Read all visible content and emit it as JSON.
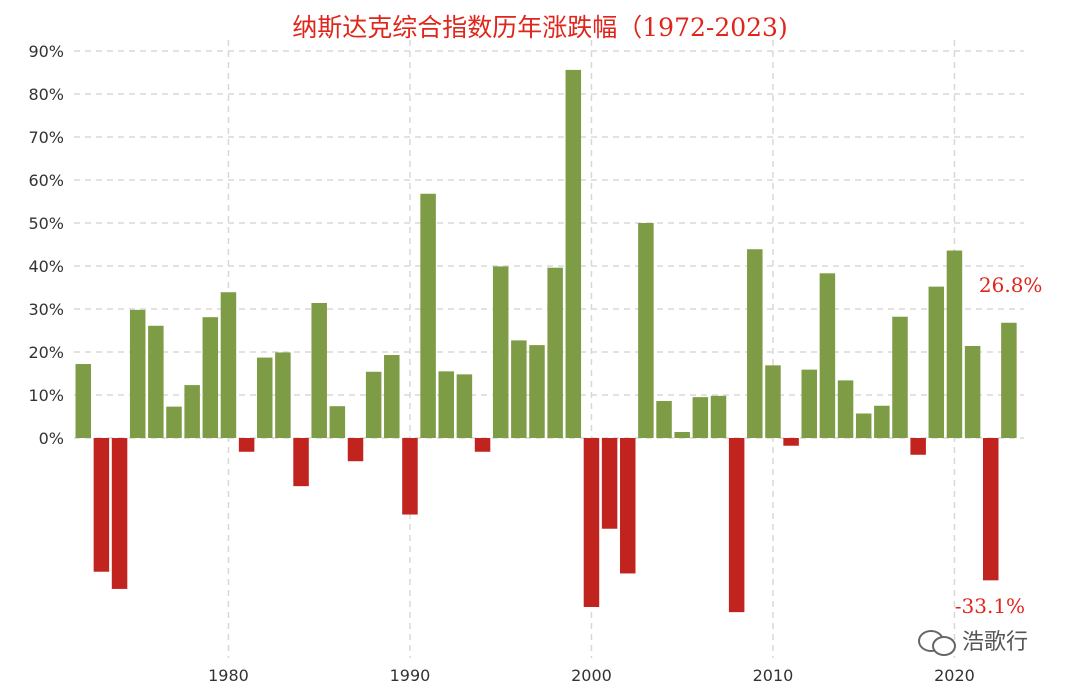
{
  "chart_data": {
    "type": "bar",
    "title": "纳斯达克综合指数历年涨跌幅（1972-2023)",
    "x": [
      1972,
      1973,
      1974,
      1975,
      1976,
      1977,
      1978,
      1979,
      1980,
      1981,
      1982,
      1983,
      1984,
      1985,
      1986,
      1987,
      1988,
      1989,
      1990,
      1991,
      1992,
      1993,
      1994,
      1995,
      1996,
      1997,
      1998,
      1999,
      2000,
      2001,
      2002,
      2003,
      2004,
      2005,
      2006,
      2007,
      2008,
      2009,
      2010,
      2011,
      2012,
      2013,
      2014,
      2015,
      2016,
      2017,
      2018,
      2019,
      2020,
      2021,
      2022,
      2023
    ],
    "values": [
      17.2,
      -31.1,
      -35.1,
      29.8,
      26.1,
      7.3,
      12.3,
      28.1,
      33.9,
      -3.2,
      18.7,
      19.9,
      -11.2,
      31.4,
      7.4,
      -5.4,
      15.4,
      19.3,
      -17.8,
      56.8,
      15.5,
      14.8,
      -3.2,
      39.9,
      22.7,
      21.6,
      39.6,
      85.6,
      -39.3,
      -21.1,
      -31.5,
      50.0,
      8.6,
      1.4,
      9.5,
      9.8,
      -40.5,
      43.9,
      16.9,
      -1.8,
      15.9,
      38.3,
      13.4,
      5.7,
      7.5,
      28.2,
      -3.9,
      35.2,
      43.6,
      21.4,
      -33.1,
      26.8
    ],
    "ylim": [
      -45,
      90
    ],
    "yticks": [
      "0%",
      "10%",
      "20%",
      "30%",
      "40%",
      "50%",
      "60%",
      "70%",
      "80%",
      "90%"
    ],
    "xticks": [
      "1980",
      "1990",
      "2000",
      "2010",
      "2020"
    ],
    "grid": true,
    "colors": {
      "positive": "#7e9c45",
      "negative": "#c1241f",
      "annotation": "#e0251b"
    },
    "annotations": [
      {
        "year": 2023,
        "text": "26.8%"
      },
      {
        "year": 2022,
        "text": "-33.1%"
      }
    ]
  },
  "watermark": {
    "text": "浩歌行",
    "icon": "wechat-icon"
  }
}
